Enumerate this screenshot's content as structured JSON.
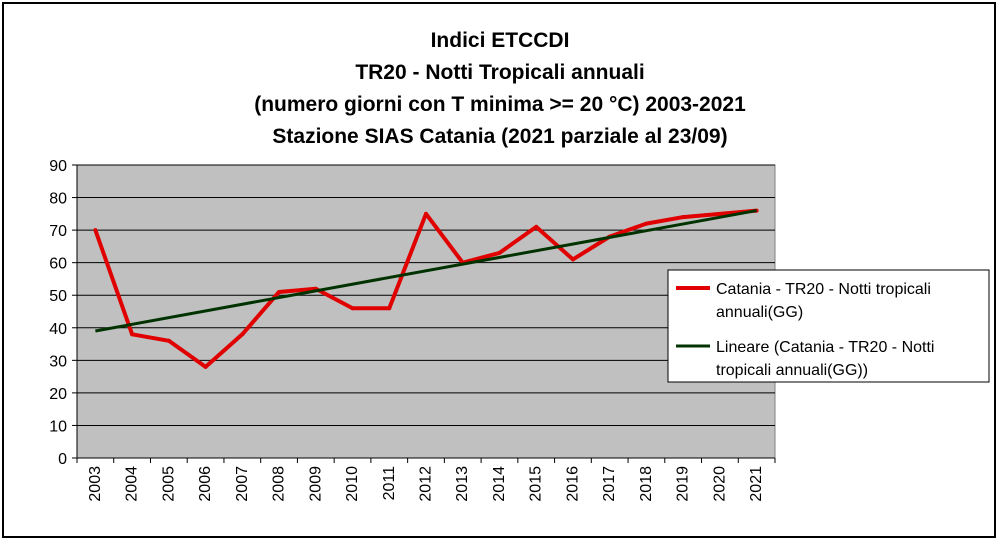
{
  "chart_data": {
    "type": "line",
    "title_lines": [
      "Indici ETCCDI",
      "TR20 - Notti Tropicali annuali",
      "(numero giorni con T minima >= 20 °C) 2003-2021",
      "Stazione SIAS Catania (2021 parziale al 23/09)"
    ],
    "categories": [
      "2003",
      "2004",
      "2005",
      "2006",
      "2007",
      "2008",
      "2009",
      "2010",
      "2011",
      "2012",
      "2013",
      "2014",
      "2015",
      "2016",
      "2017",
      "2018",
      "2019",
      "2020",
      "2021"
    ],
    "ylim": [
      0,
      90
    ],
    "yticks": [
      0,
      10,
      20,
      30,
      40,
      50,
      60,
      70,
      80,
      90
    ],
    "grid": true,
    "legend_position": "right",
    "plot_background": "#c0c0c0",
    "series": [
      {
        "name": "Catania - TR20 - Notti tropicali annuali(GG)",
        "legend_lines": [
          "Catania - TR20 - Notti tropicali",
          "annuali(GG)"
        ],
        "color": "#e00000",
        "values": [
          70,
          38,
          36,
          28,
          38,
          51,
          52,
          46,
          46,
          75,
          60,
          63,
          71,
          61,
          68,
          72,
          74,
          75,
          76
        ]
      },
      {
        "name": "Lineare (Catania - TR20 - Notti tropicali annuali(GG))",
        "legend_lines": [
          "Lineare (Catania - TR20 - Notti",
          "tropicali annuali(GG))"
        ],
        "color": "#003300",
        "trend": [
          39,
          76
        ]
      }
    ]
  }
}
